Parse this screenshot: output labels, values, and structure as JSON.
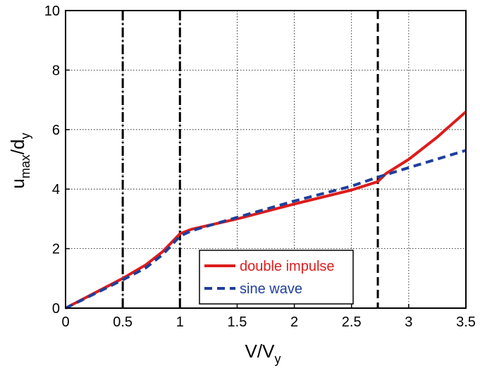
{
  "chart_data": {
    "type": "line",
    "xlabel": {
      "main": "V/V",
      "sub": "y"
    },
    "ylabel": {
      "main1": "u",
      "sub1": "max",
      "main2": "/d",
      "sub2": "y"
    },
    "xlim": [
      0,
      3.5
    ],
    "ylim": [
      0,
      10
    ],
    "xticks": [
      "0",
      "0.5",
      "1",
      "1.5",
      "2",
      "2.5",
      "3",
      "3.5"
    ],
    "yticks": [
      "0",
      "2",
      "4",
      "6",
      "8",
      "10"
    ],
    "grid": true,
    "vlines": [
      {
        "x": 0.5,
        "style": "dash-dot"
      },
      {
        "x": 1.0,
        "style": "dash-dot"
      },
      {
        "x": 2.73,
        "style": "dashed"
      }
    ],
    "series": [
      {
        "name": "double impulse",
        "color": "#dd1c1c",
        "style": "solid",
        "points": [
          [
            0,
            0
          ],
          [
            0.5,
            1.0
          ],
          [
            0.7,
            1.45
          ],
          [
            0.85,
            1.9
          ],
          [
            1.0,
            2.5
          ],
          [
            1.1,
            2.65
          ],
          [
            1.5,
            3.0
          ],
          [
            2.0,
            3.5
          ],
          [
            2.5,
            3.97
          ],
          [
            2.73,
            4.25
          ],
          [
            2.8,
            4.52
          ],
          [
            3.0,
            5.0
          ],
          [
            3.25,
            5.75
          ],
          [
            3.5,
            6.6
          ]
        ]
      },
      {
        "name": "sine wave",
        "color": "#1f3f9c",
        "style": "dashed",
        "points": [
          [
            0,
            0
          ],
          [
            0.5,
            0.95
          ],
          [
            0.7,
            1.35
          ],
          [
            0.85,
            1.8
          ],
          [
            1.0,
            2.42
          ],
          [
            1.1,
            2.6
          ],
          [
            1.5,
            3.05
          ],
          [
            2.0,
            3.6
          ],
          [
            2.5,
            4.1
          ],
          [
            2.73,
            4.4
          ],
          [
            3.0,
            4.72
          ],
          [
            3.5,
            5.3
          ]
        ]
      }
    ],
    "legend": {
      "position": "bottom-center"
    }
  }
}
